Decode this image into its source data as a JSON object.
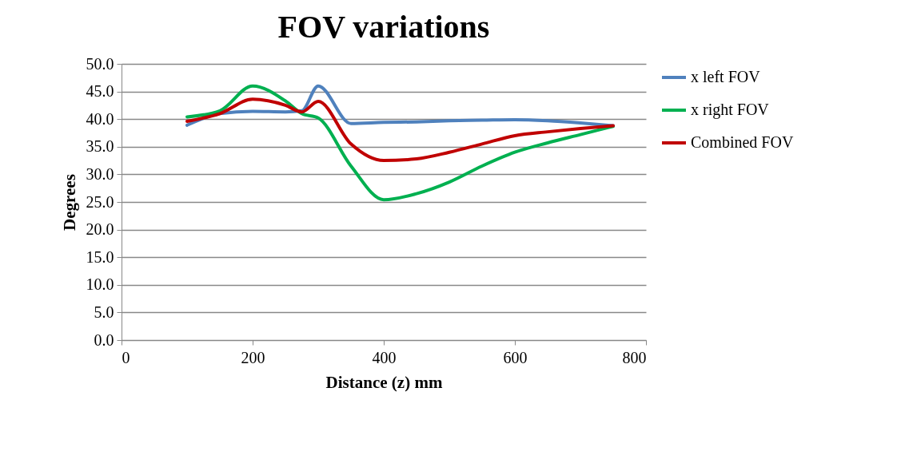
{
  "chart_data": {
    "type": "line",
    "title": "FOV variations",
    "xlabel": "Distance (z) mm",
    "ylabel": "Degrees",
    "x": [
      100,
      150,
      200,
      250,
      275,
      300,
      350,
      400,
      450,
      500,
      550,
      600,
      650,
      700,
      750
    ],
    "series": [
      {
        "name": "x left FOV",
        "color": "#4f81bd",
        "values": [
          38.9,
          41.0,
          41.4,
          41.3,
          41.5,
          46.0,
          39.2,
          39.4,
          39.5,
          39.7,
          39.8,
          39.9,
          39.7,
          39.3,
          38.8
        ]
      },
      {
        "name": "x right FOV",
        "color": "#00b050",
        "values": [
          40.4,
          41.5,
          46.0,
          43.3,
          41.0,
          40.2,
          31.5,
          25.4,
          26.5,
          28.6,
          31.5,
          34.0,
          35.7,
          37.2,
          38.7
        ]
      },
      {
        "name": "Combined FOV",
        "color": "#c00000",
        "values": [
          39.6,
          41.0,
          43.6,
          42.5,
          41.3,
          43.2,
          35.5,
          32.5,
          32.8,
          34.0,
          35.5,
          37.0,
          37.7,
          38.3,
          38.8
        ]
      }
    ],
    "xlim": [
      0,
      800
    ],
    "xticks": [
      0,
      200,
      400,
      600,
      800
    ],
    "ylim": [
      0,
      50
    ],
    "yticks": [
      {
        "value": 0,
        "label": "0.0"
      },
      {
        "value": 5,
        "label": "5.0"
      },
      {
        "value": 10,
        "label": "10.0"
      },
      {
        "value": 15,
        "label": "15.0"
      },
      {
        "value": 20,
        "label": "20.0"
      },
      {
        "value": 25,
        "label": "25.0"
      },
      {
        "value": 30,
        "label": "30.0"
      },
      {
        "value": 35,
        "label": "35.0"
      },
      {
        "value": 40,
        "label": "40.0"
      },
      {
        "value": 45,
        "label": "45.0"
      },
      {
        "value": 50,
        "label": "50.0"
      }
    ],
    "grid": "y",
    "legend": "right",
    "marker": "none",
    "line_style": "solid"
  }
}
